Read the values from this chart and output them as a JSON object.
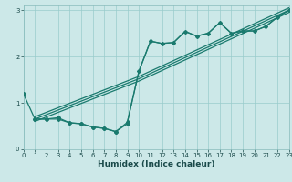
{
  "xlabel": "Humidex (Indice chaleur)",
  "xlim": [
    0,
    23
  ],
  "ylim": [
    0,
    3.1
  ],
  "xticks": [
    0,
    1,
    2,
    3,
    4,
    5,
    6,
    7,
    8,
    9,
    10,
    11,
    12,
    13,
    14,
    15,
    16,
    17,
    18,
    19,
    20,
    21,
    22,
    23
  ],
  "yticks": [
    0,
    1,
    2,
    3
  ],
  "bg_color": "#cce8e8",
  "line_color": "#1a7a6e",
  "grid_color": "#99cccc",
  "marker": "D",
  "markersize": 2.0,
  "linewidth": 0.9,
  "line_main": [
    [
      0,
      1.2
    ],
    [
      1,
      0.65
    ],
    [
      2,
      0.65
    ],
    [
      3,
      0.68
    ],
    [
      4,
      0.57
    ],
    [
      5,
      0.55
    ],
    [
      6,
      0.48
    ],
    [
      7,
      0.45
    ],
    [
      8,
      0.38
    ],
    [
      9,
      0.58
    ],
    [
      10,
      1.68
    ],
    [
      11,
      2.33
    ],
    [
      12,
      2.28
    ],
    [
      13,
      2.3
    ],
    [
      14,
      2.54
    ],
    [
      15,
      2.44
    ],
    [
      16,
      2.5
    ],
    [
      17,
      2.73
    ],
    [
      18,
      2.5
    ],
    [
      19,
      2.55
    ],
    [
      20,
      2.55
    ],
    [
      21,
      2.65
    ],
    [
      22,
      2.85
    ],
    [
      23,
      3.0
    ]
  ],
  "line_low": [
    [
      1,
      0.65
    ],
    [
      2,
      0.65
    ],
    [
      3,
      0.65
    ],
    [
      4,
      0.57
    ],
    [
      5,
      0.55
    ],
    [
      6,
      0.48
    ],
    [
      7,
      0.45
    ],
    [
      8,
      0.38
    ],
    [
      9,
      0.55
    ]
  ],
  "line_reg1": [
    [
      1,
      0.65
    ],
    [
      10,
      1.52
    ],
    [
      23,
      3.0
    ]
  ],
  "line_reg2": [
    [
      1,
      0.7
    ],
    [
      10,
      1.57
    ],
    [
      23,
      3.05
    ]
  ],
  "line_reg3": [
    [
      1,
      0.6
    ],
    [
      10,
      1.47
    ],
    [
      23,
      2.95
    ]
  ],
  "line_upper": [
    [
      9,
      0.58
    ],
    [
      10,
      1.68
    ],
    [
      11,
      2.33
    ],
    [
      12,
      2.28
    ],
    [
      13,
      2.3
    ],
    [
      14,
      2.54
    ],
    [
      15,
      2.44
    ],
    [
      16,
      2.5
    ],
    [
      17,
      2.73
    ],
    [
      18,
      2.5
    ],
    [
      19,
      2.55
    ],
    [
      20,
      2.55
    ],
    [
      21,
      2.65
    ],
    [
      22,
      2.85
    ],
    [
      23,
      3.0
    ]
  ]
}
